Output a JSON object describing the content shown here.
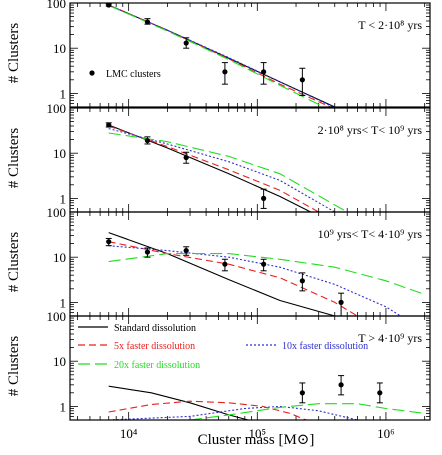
{
  "figure": {
    "xlabel": "Cluster mass [M⊙]",
    "ylabel": "# Clusters"
  },
  "legend": {
    "standard": {
      "label": "Standard dissolution",
      "color": "#000000"
    },
    "x5": {
      "label": "5x faster dissolution",
      "color": "#e8201e"
    },
    "x10": {
      "label": "10x faster dissolution",
      "color": "#2f2fd0"
    },
    "x20": {
      "label": "20x faster dissolution",
      "color": "#22dd22"
    },
    "lmc": {
      "label": "LMC clusters"
    }
  },
  "chart_data": [
    {
      "type": "line",
      "title": "T < 2·10⁸ yrs",
      "xscale": "log",
      "yscale": "log",
      "xlim": [
        3500,
        2200000
      ],
      "ylim": [
        0.5,
        100
      ],
      "xticks": [
        "10⁴",
        "10⁵",
        "10⁶"
      ],
      "yticks": [
        "1",
        "10",
        "100"
      ],
      "legend": "bottom-left",
      "observed": {
        "name": "LMC clusters",
        "x": [
          7000,
          14000,
          28000,
          56000,
          112000,
          224000
        ],
        "y": [
          90,
          38,
          13,
          3,
          3,
          2
        ],
        "err_low": [
          85,
          34,
          10,
          1.6,
          1.6,
          0.9
        ],
        "err_high": [
          95,
          45,
          17,
          4.8,
          4.8,
          3.6
        ]
      },
      "series": [
        {
          "key": "standard",
          "x": [
            7000,
            20000,
            60000,
            150000,
            400000
          ],
          "y": [
            90,
            25,
            6,
            1.8,
            0.5
          ]
        },
        {
          "key": "x5",
          "x": [
            7000,
            20000,
            60000,
            150000,
            370000
          ],
          "y": [
            90,
            25,
            5.8,
            1.6,
            0.5
          ]
        },
        {
          "key": "x10",
          "x": [
            7000,
            20000,
            60000,
            150000,
            390000
          ],
          "y": [
            90,
            25,
            6.2,
            1.8,
            0.5
          ]
        },
        {
          "key": "x20",
          "x": [
            7000,
            20000,
            60000,
            150000,
            330000
          ],
          "y": [
            88,
            24,
            5.6,
            1.5,
            0.5
          ]
        }
      ]
    },
    {
      "type": "line",
      "title": "2·10⁸ yrs< T< 10⁹ yrs",
      "xscale": "log",
      "yscale": "log",
      "xlim": [
        3500,
        2200000
      ],
      "ylim": [
        0.5,
        100
      ],
      "xticks": [
        "10⁴",
        "10⁵",
        "10⁶"
      ],
      "yticks": [
        "1",
        "10",
        "100"
      ],
      "observed": {
        "name": "LMC clusters",
        "x": [
          7000,
          14000,
          28000,
          112000
        ],
        "y": [
          42,
          19,
          8,
          1
        ],
        "err_low": [
          38,
          16,
          6,
          0.6
        ],
        "err_high": [
          47,
          23,
          10.5,
          1.6
        ]
      },
      "series": [
        {
          "key": "standard",
          "x": [
            7000,
            20000,
            60000,
            150000,
            260000
          ],
          "y": [
            42,
            13,
            3.5,
            1.1,
            0.5
          ]
        },
        {
          "key": "x5",
          "x": [
            7000,
            20000,
            60000,
            150000,
            300000
          ],
          "y": [
            40,
            14,
            4.3,
            1.5,
            0.5
          ]
        },
        {
          "key": "x10",
          "x": [
            7000,
            20000,
            60000,
            150000,
            400000
          ],
          "y": [
            35,
            16,
            6.5,
            2.5,
            0.5
          ]
        },
        {
          "key": "x20",
          "x": [
            7000,
            20000,
            60000,
            150000,
            500000
          ],
          "y": [
            28,
            18,
            8.5,
            3.5,
            0.5
          ]
        }
      ]
    },
    {
      "type": "line",
      "title": "10⁹ yrs< T< 4·10⁹ yrs",
      "xscale": "log",
      "yscale": "log",
      "xlim": [
        3500,
        2200000
      ],
      "ylim": [
        0.5,
        100
      ],
      "xticks": [
        "10⁴",
        "10⁵",
        "10⁶"
      ],
      "yticks": [
        "1",
        "10",
        "100"
      ],
      "observed": {
        "name": "LMC clusters",
        "x": [
          7000,
          14000,
          28000,
          56000,
          112000,
          224000,
          448000
        ],
        "y": [
          22,
          13,
          14,
          7,
          7,
          3,
          1
        ],
        "err_low": [
          18,
          10,
          11,
          5,
          5,
          1.8,
          0.5
        ],
        "err_high": [
          26,
          16,
          17,
          9,
          9,
          4.5,
          1.6
        ]
      },
      "series": [
        {
          "key": "standard",
          "x": [
            7000,
            20000,
            60000,
            150000,
            400000
          ],
          "y": [
            35,
            12,
            3.2,
            1.1,
            0.5
          ]
        },
        {
          "key": "x5",
          "x": [
            7000,
            20000,
            60000,
            150000,
            400000,
            600000
          ],
          "y": [
            22,
            12,
            7,
            3.5,
            1,
            0.5
          ]
        },
        {
          "key": "x10",
          "x": [
            7000,
            20000,
            60000,
            150000,
            400000,
            1000000,
            1300000
          ],
          "y": [
            18,
            14,
            10,
            6,
            2.5,
            0.8,
            0.5
          ]
        },
        {
          "key": "x20",
          "x": [
            7000,
            20000,
            60000,
            150000,
            400000,
            1000000,
            2000000
          ],
          "y": [
            8,
            12,
            12,
            9,
            6,
            3,
            1.5
          ]
        }
      ]
    },
    {
      "type": "line",
      "title": "T > 4·10⁹ yrs",
      "xscale": "log",
      "yscale": "log",
      "xlim": [
        3500,
        2200000
      ],
      "ylim": [
        0.5,
        100
      ],
      "xticks": [
        "10⁴",
        "10⁵",
        "10⁶"
      ],
      "yticks": [
        "1",
        "10",
        "100"
      ],
      "legend": "top-left",
      "observed": {
        "name": "LMC clusters",
        "x": [
          224000,
          448000,
          896000
        ],
        "y": [
          2,
          3,
          2
        ],
        "err_low": [
          1.2,
          1.8,
          1.2
        ],
        "err_high": [
          3.3,
          4.8,
          3.3
        ]
      },
      "series": [
        {
          "key": "standard",
          "x": [
            7000,
            15000,
            30000,
            60000,
            85000
          ],
          "y": [
            2.8,
            2.0,
            1.2,
            0.65,
            0.5
          ]
        },
        {
          "key": "x5",
          "x": [
            7000,
            15000,
            30000,
            60000,
            110000,
            180000,
            240000
          ],
          "y": [
            0.75,
            1.1,
            1.3,
            1.2,
            1.0,
            0.7,
            0.5
          ]
        },
        {
          "key": "x10",
          "x": [
            7000,
            30000,
            80000,
            150000,
            300000,
            600000
          ],
          "y": [
            0.5,
            0.6,
            0.9,
            1.0,
            0.8,
            0.5
          ]
        },
        {
          "key": "x20",
          "x": [
            30000,
            60000,
            150000,
            300000,
            600000,
            1000000,
            2000000
          ],
          "y": [
            0.5,
            0.65,
            0.95,
            1.15,
            1.15,
            0.9,
            0.7
          ]
        }
      ]
    }
  ]
}
